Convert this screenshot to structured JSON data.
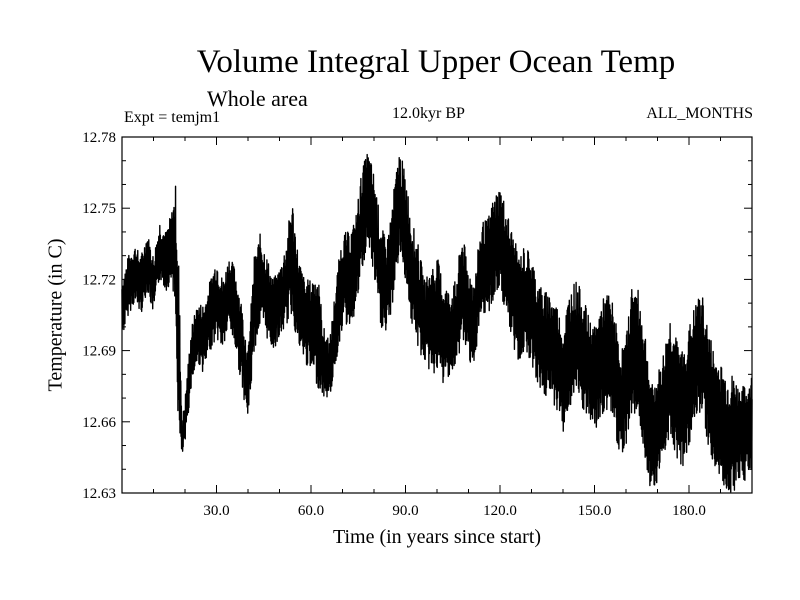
{
  "chart_data": {
    "type": "line",
    "title": "Volume Integral Upper Ocean Temp",
    "subtitle": "Whole area",
    "experiment": "Expt = temjm1",
    "period": "12.0kyr BP",
    "months": "ALL_MONTHS",
    "xlabel": "Time (in years since start)",
    "ylabel": "Temperature (in C)",
    "xlim": [
      0,
      200
    ],
    "ylim": [
      12.63,
      12.78
    ],
    "xticks": [
      {
        "value": 30,
        "label": "30.0"
      },
      {
        "value": 60,
        "label": "60.0"
      },
      {
        "value": 90,
        "label": "90.0"
      },
      {
        "value": 120,
        "label": "120.0"
      },
      {
        "value": 150,
        "label": "150.0"
      },
      {
        "value": 180,
        "label": "180.0"
      }
    ],
    "yticks": [
      {
        "value": 12.63,
        "label": "12.63"
      },
      {
        "value": 12.66,
        "label": "12.66"
      },
      {
        "value": 12.69,
        "label": "12.69"
      },
      {
        "value": 12.72,
        "label": "12.72"
      },
      {
        "value": 12.75,
        "label": "12.75"
      },
      {
        "value": 12.78,
        "label": "12.78"
      }
    ],
    "series": [
      {
        "name": "temjm1",
        "color": "#000000",
        "x": [
          0,
          2,
          4,
          6,
          8,
          10,
          12,
          14,
          16,
          17,
          18,
          19,
          20,
          22,
          24,
          26,
          28,
          30,
          32,
          34,
          36,
          38,
          40,
          42,
          44,
          46,
          48,
          50,
          52,
          54,
          56,
          58,
          60,
          62,
          64,
          66,
          68,
          70,
          72,
          74,
          76,
          78,
          80,
          82,
          84,
          86,
          88,
          90,
          92,
          94,
          96,
          98,
          100,
          102,
          104,
          106,
          108,
          110,
          112,
          114,
          116,
          118,
          120,
          122,
          124,
          126,
          128,
          130,
          132,
          134,
          136,
          138,
          140,
          142,
          144,
          146,
          148,
          150,
          152,
          154,
          156,
          158,
          160,
          162,
          164,
          166,
          168,
          170,
          172,
          174,
          176,
          178,
          180,
          182,
          184,
          186,
          188,
          190,
          192,
          194,
          196,
          198,
          200
        ],
        "upper": [
          12.72,
          12.73,
          12.735,
          12.73,
          12.74,
          12.73,
          12.745,
          12.74,
          12.75,
          12.76,
          12.73,
          12.66,
          12.67,
          12.7,
          12.71,
          12.71,
          12.72,
          12.73,
          12.72,
          12.73,
          12.725,
          12.71,
          12.69,
          12.73,
          12.74,
          12.73,
          12.72,
          12.725,
          12.735,
          12.755,
          12.73,
          12.72,
          12.72,
          12.725,
          12.7,
          12.695,
          12.72,
          12.74,
          12.74,
          12.745,
          12.765,
          12.775,
          12.765,
          12.745,
          12.735,
          12.755,
          12.775,
          12.765,
          12.745,
          12.735,
          12.72,
          12.725,
          12.73,
          12.72,
          12.715,
          12.72,
          12.74,
          12.725,
          12.72,
          12.745,
          12.745,
          12.755,
          12.76,
          12.75,
          12.74,
          12.73,
          12.735,
          12.73,
          12.72,
          12.715,
          12.715,
          12.71,
          12.7,
          12.715,
          12.72,
          12.715,
          12.705,
          12.7,
          12.71,
          12.715,
          12.71,
          12.69,
          12.695,
          12.72,
          12.715,
          12.7,
          12.675,
          12.68,
          12.69,
          12.705,
          12.695,
          12.69,
          12.7,
          12.71,
          12.715,
          12.7,
          12.69,
          12.685,
          12.68,
          12.68,
          12.675,
          12.675,
          12.68
        ],
        "lower": [
          12.695,
          12.705,
          12.71,
          12.705,
          12.715,
          12.705,
          12.72,
          12.715,
          12.72,
          12.7,
          12.65,
          12.645,
          12.65,
          12.675,
          12.685,
          12.68,
          12.69,
          12.695,
          12.69,
          12.7,
          12.69,
          12.675,
          12.66,
          12.69,
          12.7,
          12.695,
          12.69,
          12.695,
          12.7,
          12.705,
          12.69,
          12.685,
          12.68,
          12.675,
          12.67,
          12.67,
          12.685,
          12.7,
          12.7,
          12.705,
          12.72,
          12.735,
          12.72,
          12.7,
          12.695,
          12.71,
          12.73,
          12.72,
          12.7,
          12.69,
          12.685,
          12.68,
          12.68,
          12.675,
          12.68,
          12.68,
          12.695,
          12.685,
          12.685,
          12.7,
          12.705,
          12.71,
          12.715,
          12.705,
          12.69,
          12.685,
          12.69,
          12.685,
          12.675,
          12.67,
          12.67,
          12.665,
          12.655,
          12.665,
          12.67,
          12.665,
          12.66,
          12.655,
          12.66,
          12.665,
          12.66,
          12.645,
          12.65,
          12.665,
          12.66,
          12.645,
          12.63,
          12.635,
          12.645,
          12.655,
          12.645,
          12.64,
          12.65,
          12.66,
          12.665,
          12.65,
          12.64,
          12.635,
          12.63,
          12.63,
          12.635,
          12.635,
          12.64
        ]
      }
    ]
  }
}
